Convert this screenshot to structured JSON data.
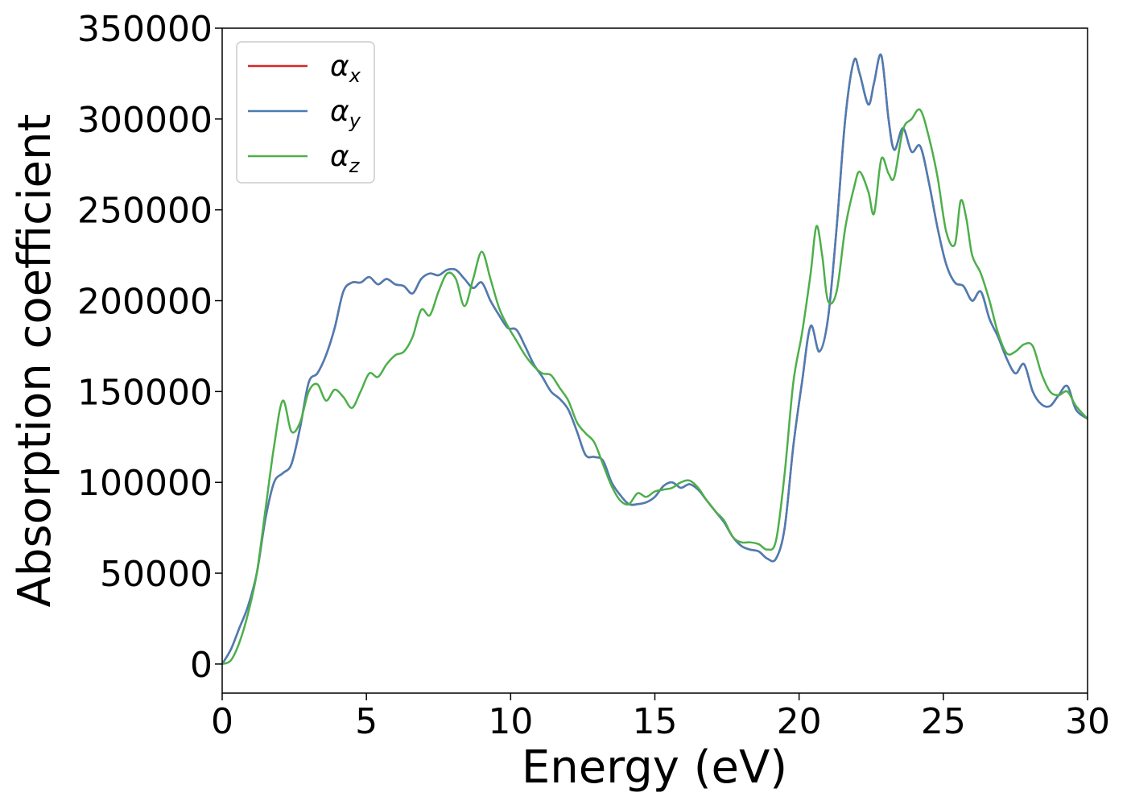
{
  "chart_data": {
    "type": "line",
    "title": "",
    "xlabel": "Energy (eV)",
    "ylabel": "Absorption coefficient",
    "xlim": [
      0,
      30
    ],
    "ylim": [
      -16000,
      350000
    ],
    "xticks": [
      0,
      5,
      10,
      15,
      20,
      25,
      30
    ],
    "yticks": [
      0,
      50000,
      100000,
      150000,
      200000,
      250000,
      300000,
      350000
    ],
    "grid": false,
    "legend_position": "top-left",
    "series": [
      {
        "name": "α_x",
        "legend_main": "α",
        "legend_sub": "x",
        "color": "#d62728",
        "x": [
          0,
          0.3,
          0.6,
          0.9,
          1.2,
          1.5,
          1.8,
          2.1,
          2.4,
          2.7,
          3.0,
          3.3,
          3.6,
          3.9,
          4.2,
          4.5,
          4.8,
          5.1,
          5.4,
          5.7,
          6.0,
          6.3,
          6.6,
          6.9,
          7.2,
          7.5,
          7.8,
          8.1,
          8.4,
          8.7,
          9.0,
          9.3,
          9.6,
          9.9,
          10.2,
          10.5,
          10.8,
          11.1,
          11.4,
          11.7,
          12.0,
          12.3,
          12.6,
          12.9,
          13.2,
          13.5,
          13.8,
          14.1,
          14.4,
          14.7,
          15.0,
          15.3,
          15.6,
          15.9,
          16.2,
          16.5,
          16.8,
          17.1,
          17.4,
          17.7,
          18.0,
          18.3,
          18.6,
          18.9,
          19.2,
          19.5,
          19.8,
          20.1,
          20.4,
          20.7,
          21.0,
          21.3,
          21.6,
          21.9,
          22.1,
          22.4,
          22.6,
          22.85,
          23.1,
          23.3,
          23.6,
          23.9,
          24.2,
          24.5,
          24.8,
          25.1,
          25.4,
          25.7,
          26.0,
          26.3,
          26.6,
          26.9,
          27.2,
          27.5,
          27.8,
          28.1,
          28.4,
          28.7,
          29.0,
          29.3,
          29.6,
          30.0
        ],
        "y": [
          0,
          8000,
          20000,
          32000,
          50000,
          80000,
          100000,
          105000,
          110000,
          130000,
          155000,
          160000,
          170000,
          185000,
          205000,
          210000,
          210000,
          213000,
          209000,
          212000,
          209000,
          208000,
          204000,
          212000,
          215000,
          214000,
          217000,
          217000,
          212000,
          207000,
          210000,
          200000,
          192000,
          185000,
          184000,
          175000,
          165000,
          158000,
          150000,
          146000,
          140000,
          128000,
          115000,
          114000,
          112000,
          100000,
          93000,
          88000,
          88000,
          89000,
          92000,
          98000,
          100000,
          97000,
          99000,
          96000,
          90000,
          84000,
          78000,
          70000,
          65000,
          63000,
          62000,
          58000,
          58000,
          75000,
          120000,
          155000,
          186000,
          172000,
          190000,
          240000,
          300000,
          332000,
          325000,
          308000,
          320000,
          335000,
          300000,
          283000,
          295000,
          282000,
          285000,
          265000,
          240000,
          220000,
          210000,
          208000,
          200000,
          205000,
          190000,
          180000,
          168000,
          160000,
          165000,
          150000,
          143000,
          142000,
          148000,
          153000,
          140000,
          135000
        ]
      },
      {
        "name": "α_y",
        "legend_main": "α",
        "legend_sub": "y",
        "color": "#4a7db5",
        "x": [
          0,
          0.3,
          0.6,
          0.9,
          1.2,
          1.5,
          1.8,
          2.1,
          2.4,
          2.7,
          3.0,
          3.3,
          3.6,
          3.9,
          4.2,
          4.5,
          4.8,
          5.1,
          5.4,
          5.7,
          6.0,
          6.3,
          6.6,
          6.9,
          7.2,
          7.5,
          7.8,
          8.1,
          8.4,
          8.7,
          9.0,
          9.3,
          9.6,
          9.9,
          10.2,
          10.5,
          10.8,
          11.1,
          11.4,
          11.7,
          12.0,
          12.3,
          12.6,
          12.9,
          13.2,
          13.5,
          13.8,
          14.1,
          14.4,
          14.7,
          15.0,
          15.3,
          15.6,
          15.9,
          16.2,
          16.5,
          16.8,
          17.1,
          17.4,
          17.7,
          18.0,
          18.3,
          18.6,
          18.9,
          19.2,
          19.5,
          19.8,
          20.1,
          20.4,
          20.7,
          21.0,
          21.3,
          21.6,
          21.9,
          22.1,
          22.4,
          22.6,
          22.85,
          23.1,
          23.3,
          23.6,
          23.9,
          24.2,
          24.5,
          24.8,
          25.1,
          25.4,
          25.7,
          26.0,
          26.3,
          26.6,
          26.9,
          27.2,
          27.5,
          27.8,
          28.1,
          28.4,
          28.7,
          29.0,
          29.3,
          29.6,
          30.0
        ],
        "y": [
          0,
          8000,
          20000,
          32000,
          50000,
          80000,
          100000,
          105000,
          110000,
          130000,
          155000,
          160000,
          170000,
          185000,
          205000,
          210000,
          210000,
          213000,
          209000,
          212000,
          209000,
          208000,
          204000,
          212000,
          215000,
          214000,
          217000,
          217000,
          212000,
          207000,
          210000,
          200000,
          192000,
          185000,
          184000,
          175000,
          165000,
          158000,
          150000,
          146000,
          140000,
          128000,
          115000,
          114000,
          112000,
          100000,
          93000,
          88000,
          88000,
          89000,
          92000,
          98000,
          100000,
          97000,
          99000,
          96000,
          90000,
          84000,
          78000,
          70000,
          65000,
          63000,
          62000,
          58000,
          58000,
          75000,
          120000,
          155000,
          186000,
          172000,
          190000,
          240000,
          300000,
          332000,
          325000,
          308000,
          320000,
          335000,
          300000,
          283000,
          295000,
          282000,
          285000,
          265000,
          240000,
          220000,
          210000,
          208000,
          200000,
          205000,
          190000,
          180000,
          168000,
          160000,
          165000,
          150000,
          143000,
          142000,
          148000,
          153000,
          140000,
          135000
        ]
      },
      {
        "name": "α_z",
        "legend_main": "α",
        "legend_sub": "z",
        "color": "#4daf4a",
        "x": [
          0,
          0.3,
          0.6,
          0.9,
          1.2,
          1.5,
          1.8,
          2.1,
          2.4,
          2.7,
          3.0,
          3.3,
          3.6,
          3.9,
          4.2,
          4.5,
          4.8,
          5.1,
          5.4,
          5.7,
          6.0,
          6.3,
          6.6,
          6.9,
          7.2,
          7.5,
          7.8,
          8.1,
          8.4,
          8.7,
          9.0,
          9.3,
          9.6,
          9.9,
          10.2,
          10.5,
          10.8,
          11.1,
          11.4,
          11.7,
          12.0,
          12.3,
          12.6,
          12.9,
          13.2,
          13.5,
          13.8,
          14.1,
          14.4,
          14.7,
          15.0,
          15.3,
          15.6,
          15.9,
          16.2,
          16.5,
          16.8,
          17.1,
          17.4,
          17.7,
          18.0,
          18.3,
          18.6,
          18.9,
          19.2,
          19.5,
          19.8,
          20.1,
          20.4,
          20.6,
          20.8,
          21.0,
          21.3,
          21.6,
          21.9,
          22.1,
          22.4,
          22.6,
          22.85,
          23.1,
          23.3,
          23.6,
          23.9,
          24.2,
          24.5,
          24.8,
          25.1,
          25.4,
          25.6,
          25.8,
          26.0,
          26.3,
          26.6,
          26.9,
          27.2,
          27.5,
          27.8,
          28.1,
          28.4,
          28.7,
          29.0,
          29.3,
          29.6,
          30.0
        ],
        "y": [
          0,
          2000,
          12000,
          28000,
          50000,
          85000,
          120000,
          145000,
          128000,
          133000,
          150000,
          154000,
          145000,
          151000,
          147000,
          141000,
          150000,
          160000,
          158000,
          165000,
          170000,
          172000,
          180000,
          195000,
          192000,
          205000,
          215000,
          212000,
          197000,
          212000,
          227000,
          212000,
          196000,
          186000,
          178000,
          170000,
          164000,
          160000,
          159000,
          152000,
          145000,
          133000,
          127000,
          122000,
          110000,
          98000,
          90000,
          88000,
          94000,
          92000,
          95000,
          96000,
          97000,
          100000,
          101000,
          97000,
          90000,
          84000,
          79000,
          70000,
          67000,
          67000,
          66000,
          63000,
          68000,
          105000,
          155000,
          182000,
          215000,
          241000,
          225000,
          200000,
          205000,
          240000,
          262000,
          271000,
          260000,
          248000,
          278000,
          270000,
          268000,
          294000,
          300000,
          305000,
          290000,
          268000,
          238000,
          231000,
          255000,
          245000,
          225000,
          215000,
          200000,
          182000,
          171000,
          172000,
          176000,
          175000,
          160000,
          150000,
          148000,
          150000,
          142000,
          135000
        ]
      }
    ]
  }
}
